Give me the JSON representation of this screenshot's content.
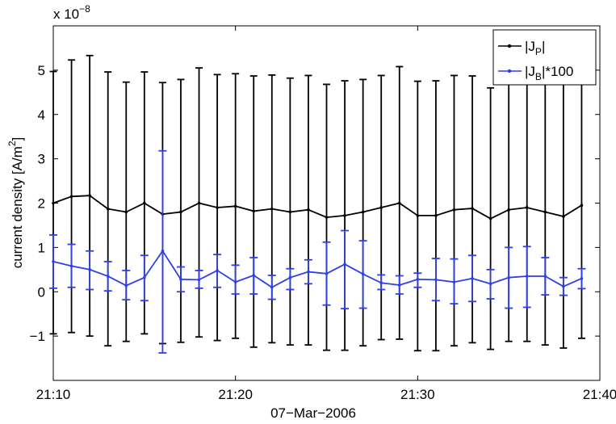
{
  "chart_data": {
    "type": "line",
    "title": "",
    "xlabel": "07−Mar−2006",
    "ylabel_main": "current density [A/m",
    "ylabel_sup": "2",
    "ylabel_end": "]",
    "scale_base": "x 10",
    "scale_exp": "−8",
    "xlim": [
      0,
      30
    ],
    "ylim": [
      -2,
      6
    ],
    "x_tick_values": [
      0,
      10,
      20,
      30
    ],
    "x_tick_labels": [
      "21:10",
      "21:20",
      "21:30",
      "21:40"
    ],
    "y_tick_values": [
      -1,
      0,
      1,
      2,
      3,
      4,
      5
    ],
    "y_tick_labels": [
      "−1",
      "0",
      "1",
      "2",
      "3",
      "4",
      "5"
    ],
    "grid": false,
    "legend_position": "top-right",
    "x_minutes_after_2110": [
      0,
      1,
      2,
      3,
      4,
      5,
      6,
      7,
      8,
      9,
      10,
      11,
      12,
      13,
      14,
      15,
      16,
      17,
      18,
      19,
      20,
      21,
      22,
      23,
      24,
      25,
      26,
      27,
      28,
      29
    ],
    "series": [
      {
        "name_main": "|J",
        "name_sub": "P",
        "name_end": "|",
        "color": "#000000",
        "values": [
          2.0,
          2.15,
          2.17,
          1.87,
          1.8,
          2.0,
          1.75,
          1.8,
          2.0,
          1.9,
          1.93,
          1.82,
          1.87,
          1.8,
          1.85,
          1.68,
          1.72,
          1.8,
          1.9,
          2.0,
          1.72,
          1.72,
          1.85,
          1.88,
          1.65,
          1.85,
          1.9,
          1.8,
          1.7,
          1.95
        ],
        "err_upper": [
          4.97,
          5.23,
          5.33,
          4.96,
          4.73,
          4.96,
          4.72,
          4.79,
          5.05,
          4.9,
          4.92,
          4.87,
          4.89,
          4.82,
          4.88,
          4.68,
          4.76,
          4.79,
          4.88,
          5.08,
          4.75,
          4.76,
          4.88,
          4.87,
          4.6,
          4.86,
          4.9,
          4.77,
          4.69,
          4.98
        ],
        "err_lower": [
          -0.95,
          -0.92,
          -1.0,
          -1.22,
          -1.12,
          -0.95,
          -1.17,
          -1.14,
          -1.02,
          -1.1,
          -1.05,
          -1.25,
          -1.15,
          -1.2,
          -1.2,
          -1.32,
          -1.32,
          -1.22,
          -1.08,
          -1.07,
          -1.33,
          -1.33,
          -1.22,
          -1.15,
          -1.3,
          -1.12,
          -1.12,
          -1.2,
          -1.27,
          -1.05
        ]
      },
      {
        "name_main": "|J",
        "name_sub": "B",
        "name_end": "|*100",
        "color": "#2e3fe6",
        "values": [
          0.68,
          0.58,
          0.5,
          0.35,
          0.14,
          0.32,
          0.92,
          0.28,
          0.27,
          0.48,
          0.22,
          0.37,
          0.1,
          0.32,
          0.45,
          0.41,
          0.62,
          0.4,
          0.2,
          0.15,
          0.28,
          0.27,
          0.22,
          0.3,
          0.18,
          0.32,
          0.35,
          0.35,
          0.12,
          0.3
        ],
        "err_upper": [
          1.28,
          1.07,
          0.92,
          0.68,
          0.48,
          0.82,
          3.18,
          0.56,
          0.48,
          0.84,
          0.6,
          0.77,
          0.37,
          0.52,
          0.72,
          1.12,
          1.38,
          1.15,
          0.38,
          0.36,
          0.42,
          0.75,
          0.74,
          0.82,
          0.5,
          1.0,
          1.02,
          0.77,
          0.32,
          0.52
        ],
        "err_lower": [
          0.08,
          0.1,
          0.05,
          0.02,
          -0.18,
          -0.2,
          -1.38,
          0.0,
          0.08,
          0.1,
          -0.05,
          -0.05,
          -0.17,
          0.05,
          0.18,
          -0.3,
          -0.38,
          -0.37,
          0.05,
          -0.05,
          0.1,
          -0.2,
          -0.27,
          -0.22,
          -0.16,
          -0.37,
          -0.35,
          -0.07,
          -0.08,
          0.07
        ]
      }
    ]
  }
}
